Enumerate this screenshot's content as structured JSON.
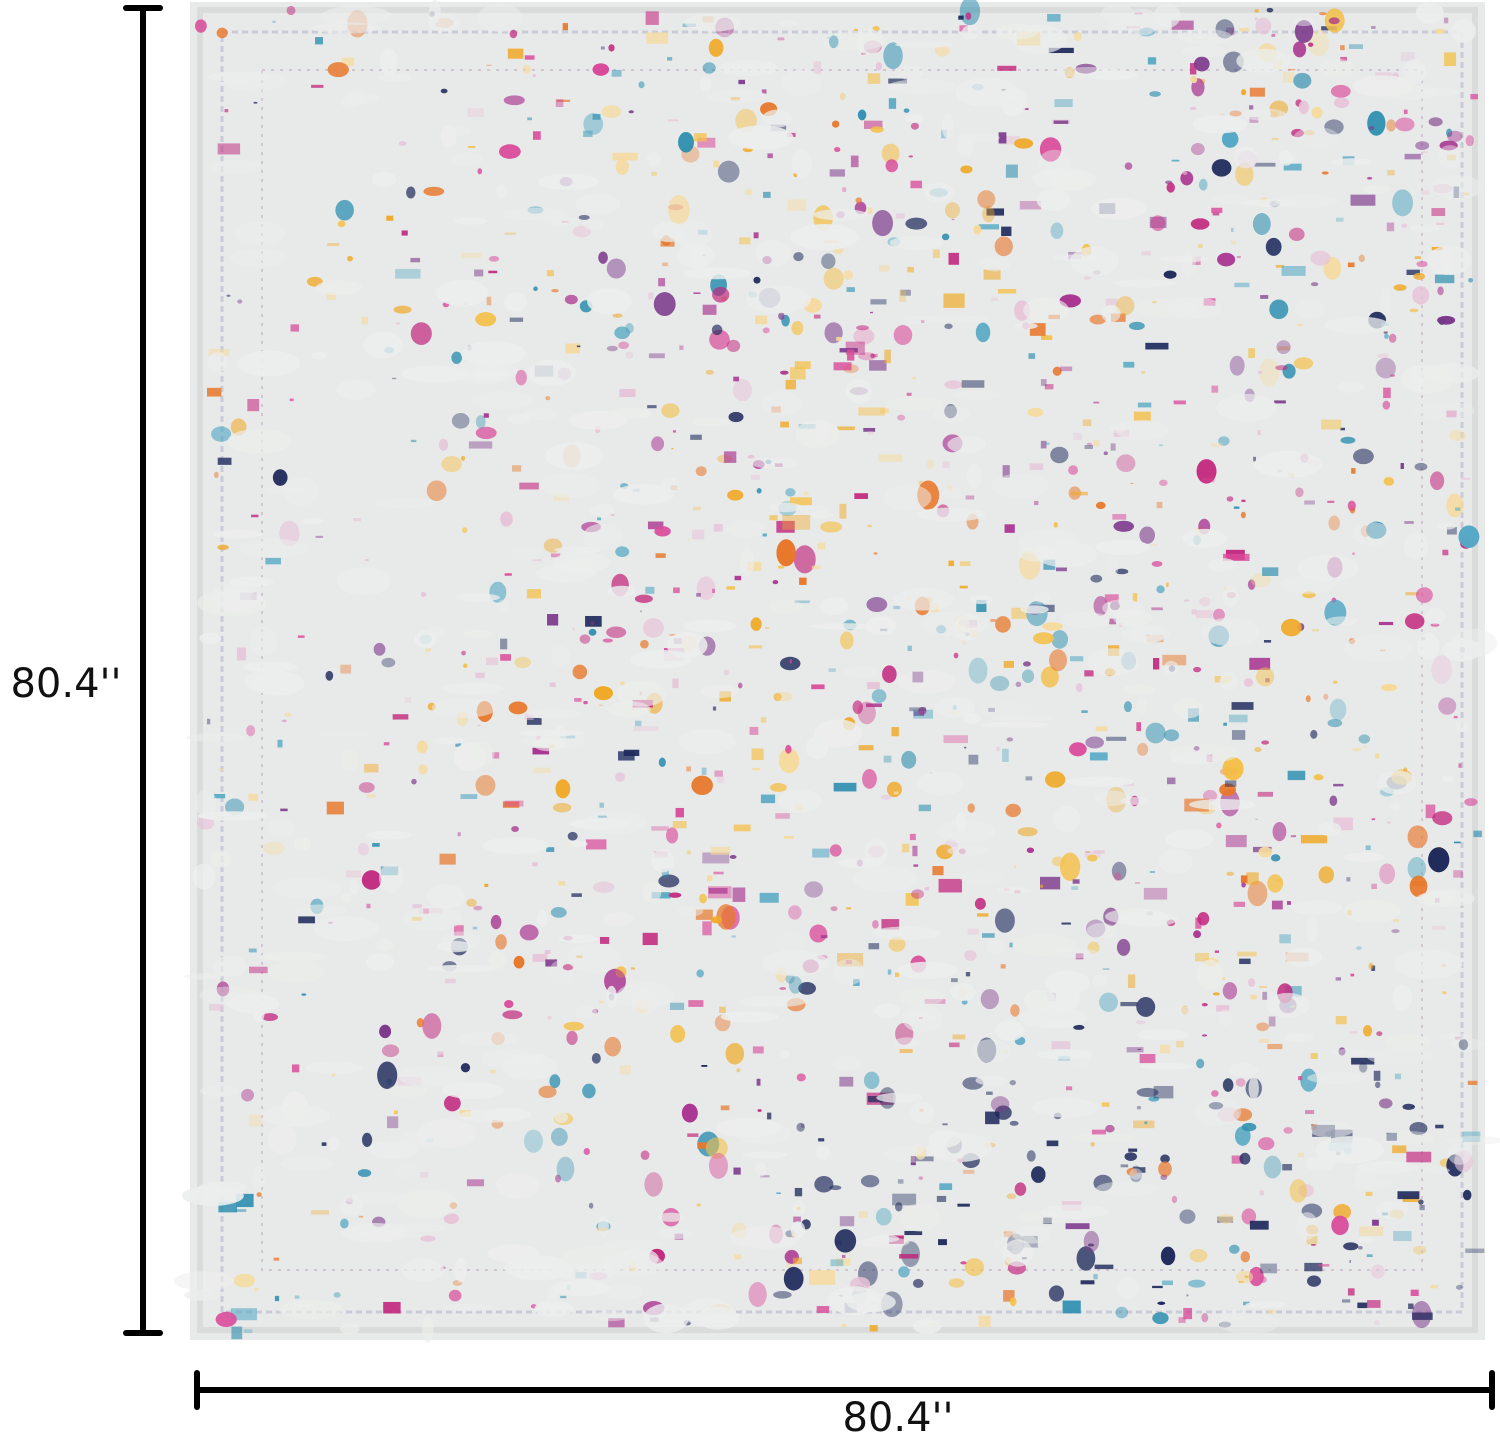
{
  "dimensions": {
    "height": "80.4''",
    "width": "80.4''"
  }
}
